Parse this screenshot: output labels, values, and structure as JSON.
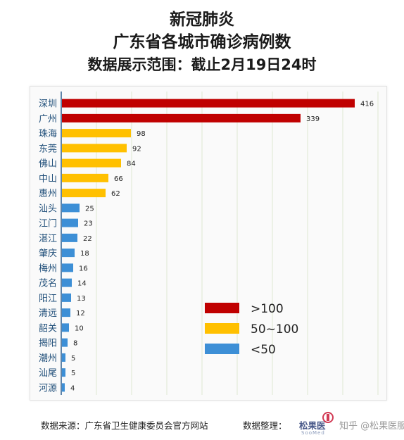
{
  "header": {
    "title_line1": "新冠肺炎",
    "title_line2": "广东省各城市确诊病例数",
    "title_line3": "数据展示范围：截止2月19日24时"
  },
  "footer": {
    "source": "数据来源：广东省卫生健康委员会官方网站",
    "organizer": "数据整理：",
    "brand": "松果医",
    "brand_sub": "SooMed",
    "watermark": "知乎 @松果医服"
  },
  "chart_data": {
    "type": "bar",
    "orientation": "horizontal",
    "categories": [
      "深圳",
      "广州",
      "珠海",
      "东莞",
      "佛山",
      "中山",
      "惠州",
      "汕头",
      "江门",
      "湛江",
      "肇庆",
      "梅州",
      "茂名",
      "阳江",
      "清远",
      "韶关",
      "揭阳",
      "潮州",
      "汕尾",
      "河源"
    ],
    "values": [
      416,
      339,
      98,
      92,
      84,
      66,
      62,
      25,
      23,
      22,
      18,
      16,
      14,
      13,
      12,
      10,
      8,
      5,
      5,
      4
    ],
    "xlim": [
      0,
      450
    ],
    "grid": "vertical",
    "legend": {
      "placement": "bottom-right",
      "entries": [
        {
          "label": ">100",
          "color": "#c00000"
        },
        {
          "label": "50~100",
          "color": "#ffc000"
        },
        {
          "label": "<50",
          "color": "#3d8fd6"
        }
      ]
    },
    "colors": {
      "high": "#c00000",
      "mid": "#ffc000",
      "low": "#3d8fd6",
      "label": "#1f4e79"
    }
  }
}
